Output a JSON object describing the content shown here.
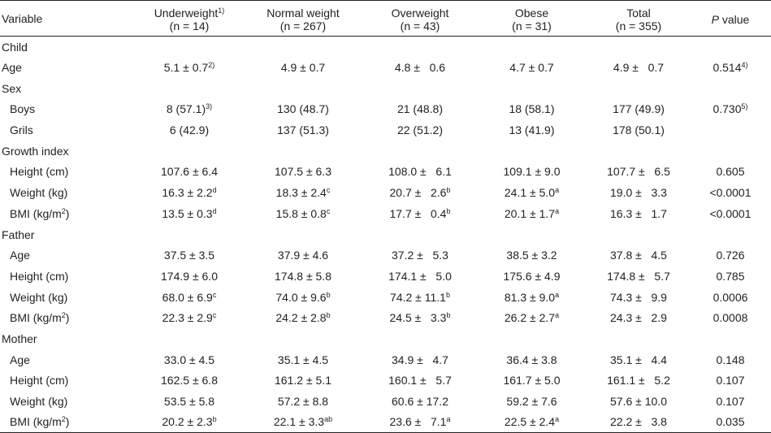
{
  "header": {
    "variable": "Variable",
    "columns": [
      {
        "name": "Underweight",
        "sup": "1)",
        "n": "(n = 14)"
      },
      {
        "name": "Normal weight",
        "sup": "",
        "n": "(n = 267)"
      },
      {
        "name": "Overweight",
        "sup": "",
        "n": "(n = 43)"
      },
      {
        "name": "Obese",
        "sup": "",
        "n": "(n = 31)"
      },
      {
        "name": "Total",
        "sup": "",
        "n": "(n = 355)"
      }
    ],
    "p_letter": "P",
    "p_rest": " value"
  },
  "rows": [
    {
      "type": "section",
      "label": "Child"
    },
    {
      "type": "data",
      "label": "Age",
      "indent": false,
      "cells": [
        {
          "v": "5.1 ± 0.7",
          "s": "2)"
        },
        {
          "v": "4.9 ± 0.7",
          "s": ""
        },
        {
          "v": "4.8 ±   0.6",
          "s": ""
        },
        {
          "v": "4.7 ± 0.7",
          "s": ""
        },
        {
          "v": "4.9 ±   0.7",
          "s": ""
        }
      ],
      "p": {
        "v": "0.514",
        "s": "4)"
      }
    },
    {
      "type": "section",
      "label": "Sex"
    },
    {
      "type": "data",
      "label": "Boys",
      "indent": true,
      "cells": [
        {
          "v": "8 (57.1)",
          "s": "3)"
        },
        {
          "v": "130 (48.7)",
          "s": ""
        },
        {
          "v": "21 (48.8)",
          "s": ""
        },
        {
          "v": "18 (58.1)",
          "s": ""
        },
        {
          "v": "177 (49.9)",
          "s": ""
        }
      ],
      "p": {
        "v": "0.730",
        "s": "5)"
      }
    },
    {
      "type": "data",
      "label": "Grils",
      "indent": true,
      "cells": [
        {
          "v": "6 (42.9)",
          "s": ""
        },
        {
          "v": "137 (51.3)",
          "s": ""
        },
        {
          "v": "22 (51.2)",
          "s": ""
        },
        {
          "v": "13 (41.9)",
          "s": ""
        },
        {
          "v": "178 (50.1)",
          "s": ""
        }
      ],
      "p": {
        "v": "",
        "s": ""
      }
    },
    {
      "type": "section",
      "label": "Growth index"
    },
    {
      "type": "data",
      "label": "Height (cm)",
      "indent": true,
      "cells": [
        {
          "v": "107.6 ± 6.4",
          "s": ""
        },
        {
          "v": "107.5 ± 6.3",
          "s": ""
        },
        {
          "v": "108.0 ±   6.1",
          "s": ""
        },
        {
          "v": "109.1 ± 9.0",
          "s": ""
        },
        {
          "v": "107.7 ±   6.5",
          "s": ""
        }
      ],
      "p": {
        "v": "0.605",
        "s": ""
      }
    },
    {
      "type": "data",
      "label": "Weight (kg)",
      "indent": true,
      "cells": [
        {
          "v": "16.3 ± 2.2",
          "s": "d"
        },
        {
          "v": "18.3 ± 2.4",
          "s": "c"
        },
        {
          "v": "20.7 ±   2.6",
          "s": "b"
        },
        {
          "v": "24.1 ± 5.0",
          "s": "a"
        },
        {
          "v": "19.0 ±   3.3",
          "s": ""
        }
      ],
      "p": {
        "v": "<0.0001",
        "s": ""
      }
    },
    {
      "type": "data",
      "label": "BMI (kg/m",
      "labelsup": "2",
      "labelend": ")",
      "indent": true,
      "cells": [
        {
          "v": "13.5 ± 0.3",
          "s": "d"
        },
        {
          "v": "15.8 ± 0.8",
          "s": "c"
        },
        {
          "v": "17.7 ±   0.4",
          "s": "b"
        },
        {
          "v": "20.1 ± 1.7",
          "s": "a"
        },
        {
          "v": "16.3 ±   1.7",
          "s": ""
        }
      ],
      "p": {
        "v": "<0.0001",
        "s": ""
      }
    },
    {
      "type": "section",
      "label": "Father"
    },
    {
      "type": "data",
      "label": "Age",
      "indent": true,
      "cells": [
        {
          "v": "37.5 ± 3.5",
          "s": ""
        },
        {
          "v": "37.9 ± 4.6",
          "s": ""
        },
        {
          "v": "37.2 ±   5.3",
          "s": ""
        },
        {
          "v": "38.5 ± 3.2",
          "s": ""
        },
        {
          "v": "37.8 ±   4.5",
          "s": ""
        }
      ],
      "p": {
        "v": "0.726",
        "s": ""
      }
    },
    {
      "type": "data",
      "label": "Height (cm)",
      "indent": true,
      "cells": [
        {
          "v": "174.9 ± 6.0",
          "s": ""
        },
        {
          "v": "174.8 ± 5.8",
          "s": ""
        },
        {
          "v": "174.1 ±   5.0",
          "s": ""
        },
        {
          "v": "175.6 ± 4.9",
          "s": ""
        },
        {
          "v": "174.8 ±   5.7",
          "s": ""
        }
      ],
      "p": {
        "v": "0.785",
        "s": ""
      }
    },
    {
      "type": "data",
      "label": "Weight (kg)",
      "indent": true,
      "cells": [
        {
          "v": "68.0 ± 6.9",
          "s": "c"
        },
        {
          "v": "74.0 ± 9.6",
          "s": "b"
        },
        {
          "v": "74.2 ± 11.1",
          "s": "b"
        },
        {
          "v": "81.3 ± 9.0",
          "s": "a"
        },
        {
          "v": "74.3 ±   9.9",
          "s": ""
        }
      ],
      "p": {
        "v": "0.0006",
        "s": ""
      }
    },
    {
      "type": "data",
      "label": "BMI (kg/m",
      "labelsup": "2",
      "labelend": ")",
      "indent": true,
      "cells": [
        {
          "v": "22.3 ± 2.9",
          "s": "c"
        },
        {
          "v": "24.2 ± 2.8",
          "s": "b"
        },
        {
          "v": "24.5 ±   3.3",
          "s": "b"
        },
        {
          "v": "26.2 ± 2.7",
          "s": "a"
        },
        {
          "v": "24.3 ±   2.9",
          "s": ""
        }
      ],
      "p": {
        "v": "0.0008",
        "s": ""
      }
    },
    {
      "type": "section",
      "label": "Mother"
    },
    {
      "type": "data",
      "label": "Age",
      "indent": true,
      "cells": [
        {
          "v": "33.0 ± 4.5",
          "s": ""
        },
        {
          "v": "35.1 ± 4.5",
          "s": ""
        },
        {
          "v": "34.9 ±   4.7",
          "s": ""
        },
        {
          "v": "36.4 ± 3.8",
          "s": ""
        },
        {
          "v": "35.1 ±   4.4",
          "s": ""
        }
      ],
      "p": {
        "v": "0.148",
        "s": ""
      }
    },
    {
      "type": "data",
      "label": "Height (cm)",
      "indent": true,
      "cells": [
        {
          "v": "162.5 ± 6.8",
          "s": ""
        },
        {
          "v": "161.2 ± 5.1",
          "s": ""
        },
        {
          "v": "160.1 ±   5.7",
          "s": ""
        },
        {
          "v": "161.7 ± 5.0",
          "s": ""
        },
        {
          "v": "161.1 ±   5.2",
          "s": ""
        }
      ],
      "p": {
        "v": "0.107",
        "s": ""
      }
    },
    {
      "type": "data",
      "label": "Weight (kg)",
      "indent": true,
      "cells": [
        {
          "v": "53.5 ± 5.8",
          "s": ""
        },
        {
          "v": "57.2 ± 8.8",
          "s": ""
        },
        {
          "v": "60.6 ± 17.2",
          "s": ""
        },
        {
          "v": "59.2 ± 7.6",
          "s": ""
        },
        {
          "v": "57.6 ± 10.0",
          "s": ""
        }
      ],
      "p": {
        "v": "0.107",
        "s": ""
      }
    },
    {
      "type": "data",
      "label": "BMI (kg/m",
      "labelsup": "2",
      "labelend": ")",
      "indent": true,
      "cells": [
        {
          "v": "20.2 ± 2.3",
          "s": "b"
        },
        {
          "v": "22.1 ± 3.3",
          "s": "ab"
        },
        {
          "v": "23.6 ±   7.1",
          "s": "a"
        },
        {
          "v": "22.5 ± 2.4",
          "s": "a"
        },
        {
          "v": "22.2 ±   3.8",
          "s": ""
        }
      ],
      "p": {
        "v": "0.035",
        "s": ""
      }
    }
  ]
}
